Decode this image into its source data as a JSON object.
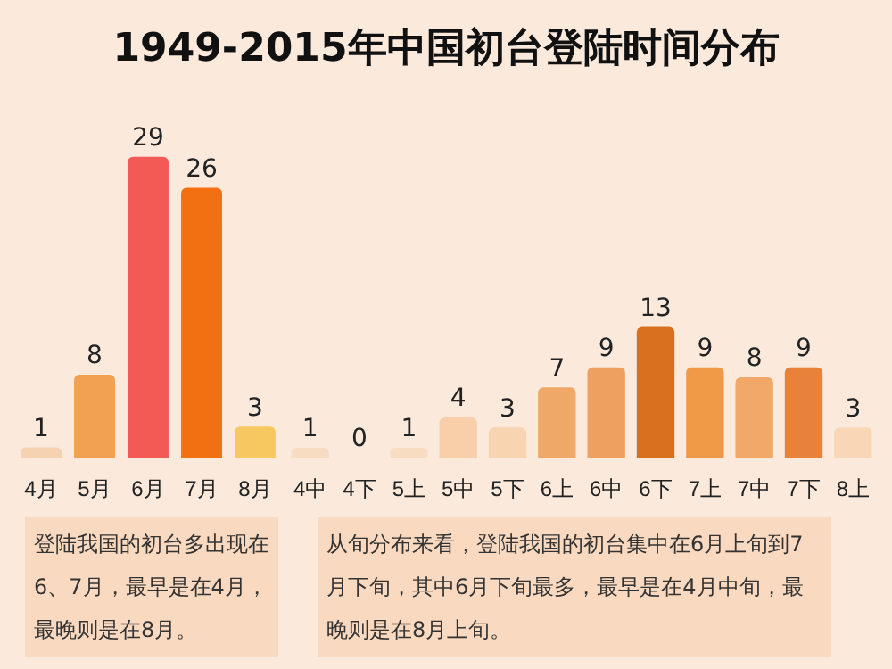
{
  "chart_data": [
    {
      "type": "bar",
      "title": "1949-2015年中国初台登陆时间分布",
      "categories": [
        "4月",
        "5月",
        "6月",
        "7月",
        "8月"
      ],
      "values": [
        1,
        8,
        29,
        26,
        3
      ],
      "colors": [
        "#f5d2b0",
        "#f2a052",
        "#f45a55",
        "#f27012",
        "#f8c860"
      ],
      "data_labels": true,
      "annotations": [
        "登陆我国的初台多出现在6、7月，最早是在4月，最晚则是在8月。"
      ]
    },
    {
      "type": "bar",
      "categories": [
        "4中",
        "4下",
        "5上",
        "5中",
        "5下",
        "6上",
        "6中",
        "6下",
        "7上",
        "7中",
        "7下",
        "8上"
      ],
      "values": [
        1,
        0,
        1,
        4,
        3,
        7,
        9,
        13,
        9,
        8,
        9,
        3
      ],
      "colors": [
        "#f8dcc2",
        "#f8dcc2",
        "#f8dcc2",
        "#f8cfa8",
        "#f8d4b0",
        "#f0a868",
        "#eea060",
        "#d8701e",
        "#f09a48",
        "#f2a868",
        "#e8823a",
        "#f8d6b6"
      ],
      "data_labels": true,
      "annotations": [
        "从旬分布来看，登陆我国的初台集中在6月上旬到7月下旬，其中6月下旬最多，最早是在4月中旬，最晚则是在8月上旬。"
      ]
    }
  ]
}
